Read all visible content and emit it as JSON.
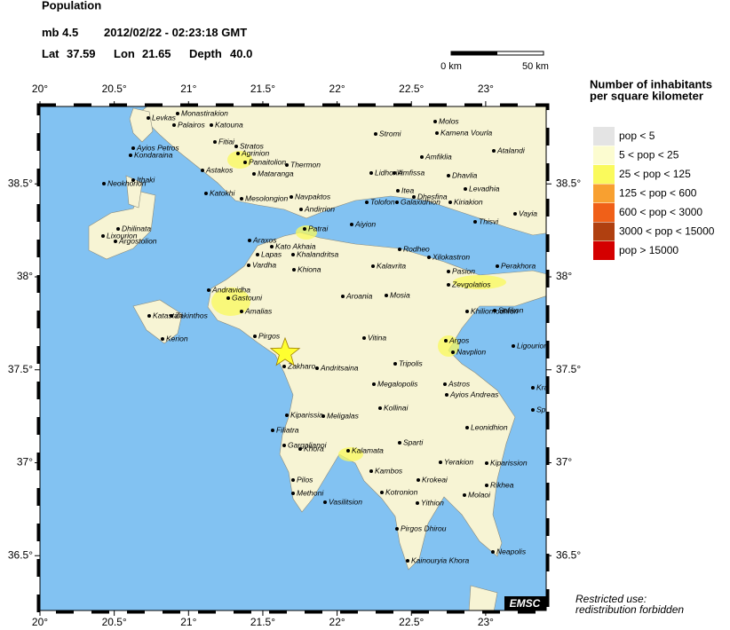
{
  "header": {
    "title": "Population",
    "magnitude": "mb 4.5",
    "datetime": "2012/02/22 - 02:23:18 GMT",
    "lat_label": "Lat",
    "lat": 37.59,
    "lon_label": "Lon",
    "lon": 21.65,
    "depth_label": "Depth",
    "depth": "40.0"
  },
  "scale_bar": {
    "start": "0 km",
    "end": "50 km"
  },
  "map": {
    "lon_ticks": [
      {
        "value": 20,
        "label": "20°"
      },
      {
        "value": 20.5,
        "label": "20.5°"
      },
      {
        "value": 21,
        "label": "21°"
      },
      {
        "value": 21.5,
        "label": "21.5°"
      },
      {
        "value": 22,
        "label": "22°"
      },
      {
        "value": 22.5,
        "label": "22.5°"
      },
      {
        "value": 23,
        "label": "23°"
      }
    ],
    "lat_ticks": [
      {
        "value": 38.5,
        "label": "38.5°"
      },
      {
        "value": 38,
        "label": "38°"
      },
      {
        "value": 37.5,
        "label": "37.5°"
      },
      {
        "value": 37,
        "label": "37°"
      },
      {
        "value": 36.5,
        "label": "36.5°"
      }
    ],
    "towns": [
      "Levkas",
      "Monastirakion",
      "Palairos",
      "Katouna",
      "Ayios Petros",
      "Kondaraina",
      "Fitiai",
      "Stratos",
      "Agrinion",
      "Panaitolion",
      "Thermon",
      "Mataranga",
      "Astakos",
      "Katokhi",
      "Mesolongion",
      "Navpaktos",
      "Andirrion",
      "Ithaki",
      "Neokhorion",
      "Dhilinata",
      "Lixourion",
      "Argostolion",
      "Patrai",
      "Aiyion",
      "Araxos",
      "Kato Akhaia",
      "Lapas",
      "Khalandritsa",
      "Vardha",
      "Khiona",
      "Kalavrita",
      "Andravidha",
      "Gastouni",
      "Amalias",
      "Aroania",
      "Mosia",
      "Katastari",
      "Zakinthos",
      "Kerion",
      "Pirgos",
      "Vitina",
      "Argos",
      "Ligourion",
      "Navplion",
      "Tripolis",
      "Zakharo",
      "Andritsaina",
      "Megalopolis",
      "Astros",
      "Ayios Andreas",
      "Kranidhi",
      "Spetsai",
      "Kollinai",
      "Kiparissia",
      "Meligalas",
      "Leonidhion",
      "Filiatra",
      "Gargalianoi",
      "Khora",
      "Kalamata",
      "Sparti",
      "Yerakion",
      "Kiparission",
      "Kambos",
      "Krokeai",
      "Rikhea",
      "Pilos",
      "Methoni",
      "Molaoi",
      "Vasilitsion",
      "Kotronion",
      "Yithion",
      "Pirgos Dhirou",
      "Neapolis",
      "Kainouryia Khora",
      "Stromi",
      "Molos",
      "Kamena Vourla",
      "Atalandi",
      "Amfiklia",
      "Dhavlia",
      "Lidhoriki",
      "Amfissa",
      "Itea",
      "Dhesfina",
      "Tolofon",
      "Galaxidhion",
      "Kiriakion",
      "Levadhia",
      "Thisvi",
      "Rodheo",
      "Xilokastron",
      "Perakhora",
      "Pasion",
      "Zevgolatios",
      "Khiliomodhion",
      "Sofikon",
      "Vayia"
    ],
    "logo": "EMSC"
  },
  "legend": {
    "title_lines": [
      "Number of inhabitants",
      "per square kilometer"
    ],
    "entries": [
      {
        "label": "pop < 5",
        "color": "#e4e4e4"
      },
      {
        "label": "5 < pop < 25",
        "color": "#fcfcd0"
      },
      {
        "label": "25 < pop < 125",
        "color": "#fafa5c"
      },
      {
        "label": "125 < pop < 600",
        "color": "#f8a030"
      },
      {
        "label": "600 < pop < 3000",
        "color": "#f06018"
      },
      {
        "label": "3000 < pop < 15000",
        "color": "#b04010"
      },
      {
        "label": "pop > 15000",
        "color": "#d40000"
      }
    ]
  },
  "notice": [
    "Restricted use:",
    "redistribution forbidden"
  ]
}
